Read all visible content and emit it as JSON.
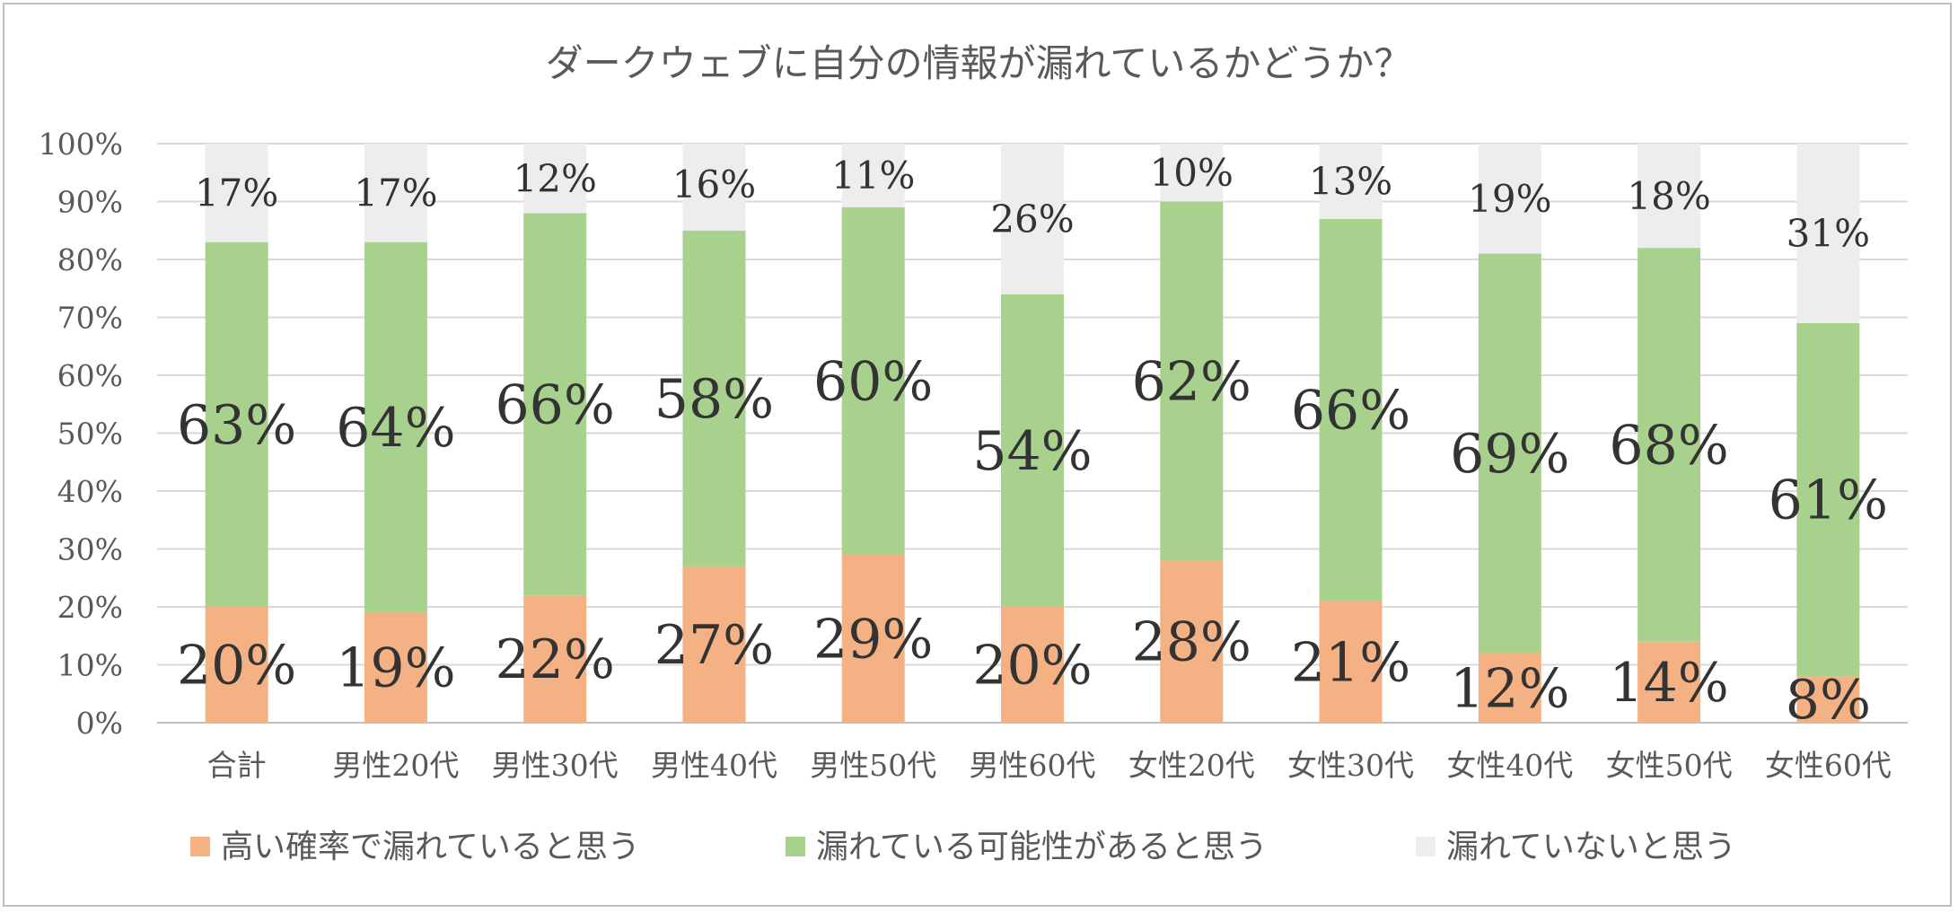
{
  "chart_data": {
    "type": "bar",
    "stacked": true,
    "title": "ダークウェブに自分の情報が漏れているかどうか？",
    "categories": [
      "合計",
      "男性20代",
      "男性30代",
      "男性40代",
      "男性50代",
      "男性60代",
      "女性20代",
      "女性30代",
      "女性40代",
      "女性50代",
      "女性60代"
    ],
    "series": [
      {
        "name": "高い確率で漏れていると思う",
        "color": "#f4b183",
        "values": [
          20,
          19,
          22,
          27,
          29,
          20,
          28,
          21,
          12,
          14,
          8
        ],
        "labels": [
          "20%",
          "19%",
          "22%",
          "27%",
          "29%",
          "20%",
          "28%",
          "21%",
          "12%",
          "14%",
          "8%"
        ]
      },
      {
        "name": "漏れている可能性があると思う",
        "color": "#a9d18e",
        "values": [
          63,
          64,
          66,
          58,
          60,
          54,
          62,
          66,
          69,
          68,
          61
        ],
        "labels": [
          "63%",
          "64%",
          "66%",
          "58%",
          "60%",
          "54%",
          "62%",
          "66%",
          "69%",
          "68%",
          "61%"
        ]
      },
      {
        "name": "漏れていないと思う",
        "color": "#ededed",
        "values": [
          17,
          17,
          12,
          16,
          11,
          26,
          10,
          13,
          19,
          18,
          31
        ],
        "labels": [
          "17%",
          "17%",
          "12%",
          "16%",
          "11%",
          "26%",
          "10%",
          "13%",
          "19%",
          "18%",
          "31%"
        ]
      }
    ],
    "yticks": [
      "0%",
      "10%",
      "20%",
      "30%",
      "40%",
      "50%",
      "60%",
      "70%",
      "80%",
      "90%",
      "100%"
    ],
    "ylim": [
      0,
      100
    ],
    "grid": true,
    "legend": "bottom"
  }
}
